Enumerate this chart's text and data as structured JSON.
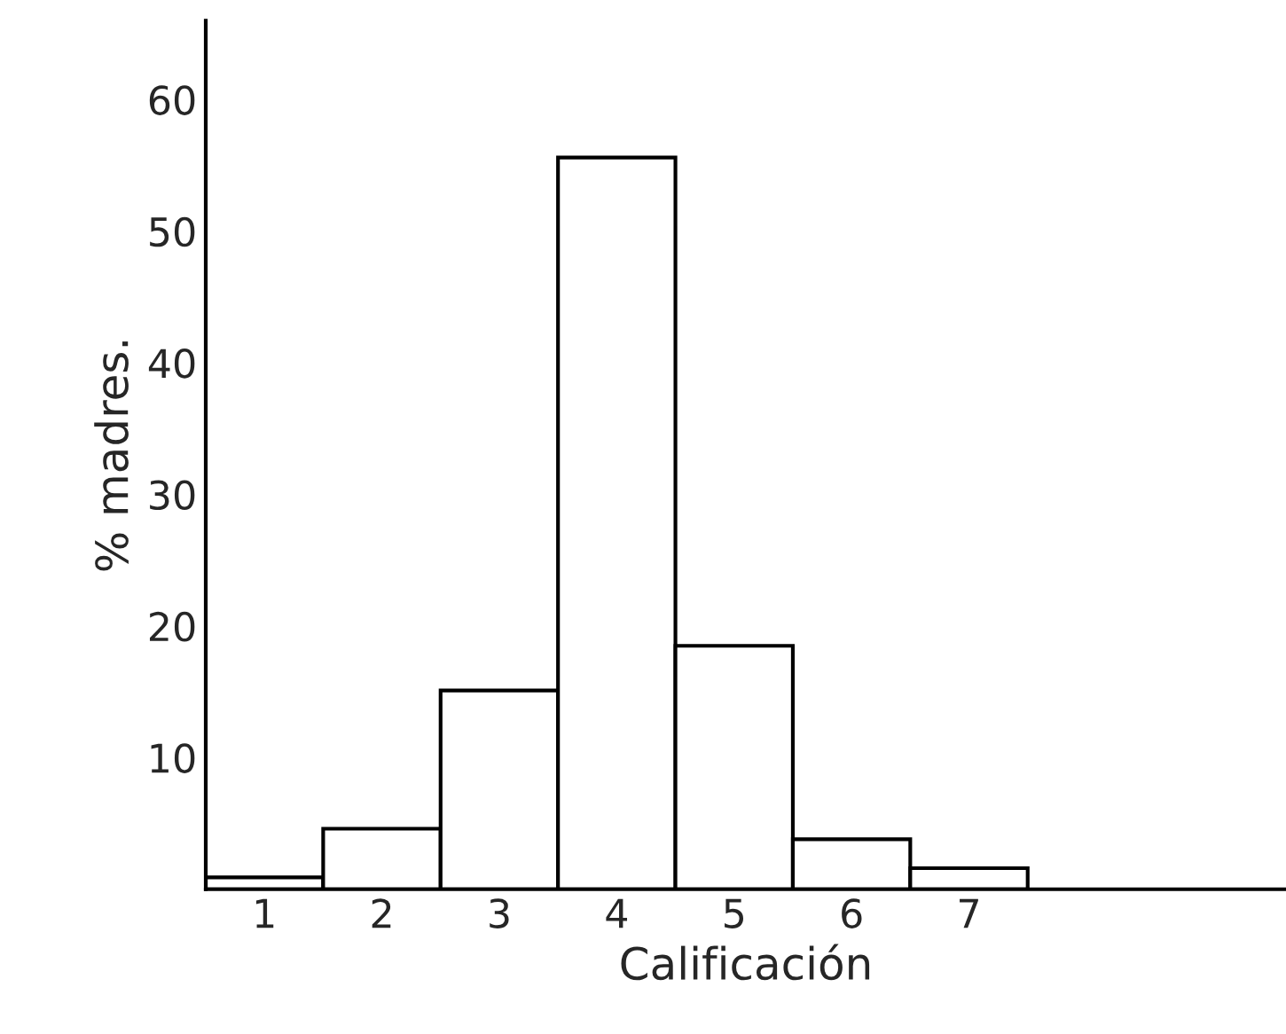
{
  "chart_data": {
    "type": "bar",
    "xlabel": "Calificación",
    "ylabel": "% madres.",
    "categories": [
      "1",
      "2",
      "3",
      "4",
      "5",
      "6",
      "7"
    ],
    "values": [
      0.9,
      4.6,
      15.1,
      55.6,
      18.5,
      3.8,
      1.6
    ],
    "color": "#ffffff",
    "ylim": [
      0,
      66
    ],
    "yticks": [
      10,
      20,
      30,
      40,
      50,
      60
    ],
    "grid": false
  }
}
